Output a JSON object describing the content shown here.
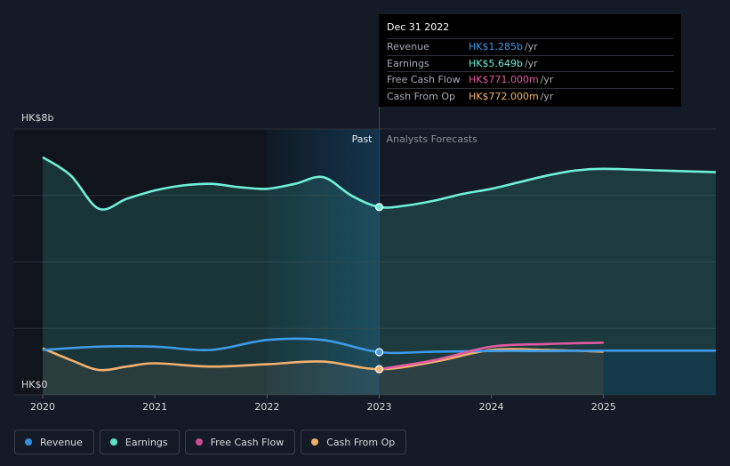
{
  "tooltip": {
    "date": "Dec 31 2022",
    "rows": [
      {
        "label": "Revenue",
        "value": "HK$1.285b",
        "unit": "/yr",
        "color": "#3d9be9"
      },
      {
        "label": "Earnings",
        "value": "HK$5.649b",
        "unit": "/yr",
        "color": "#6ff0d6"
      },
      {
        "label": "Free Cash Flow",
        "value": "HK$771.000m",
        "unit": "/yr",
        "color": "#e15aa0"
      },
      {
        "label": "Cash From Op",
        "value": "HK$772.000m",
        "unit": "/yr",
        "color": "#f2b16e"
      }
    ]
  },
  "legend": [
    {
      "label": "Revenue",
      "color": "#2f8fe0"
    },
    {
      "label": "Earnings",
      "color": "#5fe3cb"
    },
    {
      "label": "Free Cash Flow",
      "color": "#c84f8f"
    },
    {
      "label": "Cash From Op",
      "color": "#f0ad66"
    }
  ],
  "chart_data": {
    "type": "line",
    "y_top_label": "HK$8b",
    "y_bottom_label": "HK$0",
    "ylim": [
      0,
      8
    ],
    "xlim": [
      2020,
      2026
    ],
    "x_ticks": [
      "2020",
      "2021",
      "2022",
      "2023",
      "2024",
      "2025"
    ],
    "x_tick_values": [
      2020,
      2021,
      2022,
      2023,
      2024,
      2025
    ],
    "past_label": "Past",
    "forecast_label": "Analysts Forecasts",
    "divider_x": 2023,
    "highlight_start_x": 2022,
    "series": [
      {
        "name": "Earnings",
        "color": "#6ff0d6",
        "x": [
          2020.0,
          2020.25,
          2020.5,
          2020.75,
          2021.0,
          2021.25,
          2021.5,
          2021.75,
          2022.0,
          2022.25,
          2022.5,
          2022.75,
          2023.0,
          2023.25,
          2023.5,
          2023.75,
          2024.0,
          2024.25,
          2024.5,
          2024.75,
          2025.0,
          2025.5,
          2026.0
        ],
        "values": [
          7.15,
          6.6,
          5.6,
          5.9,
          6.15,
          6.3,
          6.35,
          6.25,
          6.2,
          6.35,
          6.55,
          6.0,
          5.65,
          5.7,
          5.85,
          6.05,
          6.2,
          6.4,
          6.6,
          6.75,
          6.8,
          6.75,
          6.7
        ]
      },
      {
        "name": "Revenue",
        "color": "#3d9be9",
        "x": [
          2020.0,
          2020.5,
          2021.0,
          2021.5,
          2022.0,
          2022.5,
          2023.0,
          2023.5,
          2024.0,
          2024.5,
          2025.0,
          2025.5,
          2026.0
        ],
        "values": [
          1.35,
          1.45,
          1.45,
          1.35,
          1.65,
          1.65,
          1.285,
          1.3,
          1.32,
          1.32,
          1.33,
          1.33,
          1.33
        ]
      },
      {
        "name": "Free Cash Flow",
        "color": "#e15aa0",
        "x": [
          2023.0,
          2023.5,
          2024.0,
          2024.5,
          2025.0
        ],
        "values": [
          0.771,
          1.05,
          1.45,
          1.53,
          1.57
        ]
      },
      {
        "name": "Cash From Op",
        "color": "#f2b16e",
        "x": [
          2020.0,
          2020.25,
          2020.5,
          2020.75,
          2021.0,
          2021.5,
          2022.0,
          2022.5,
          2023.0,
          2023.5,
          2024.0,
          2024.5,
          2025.0
        ],
        "values": [
          1.4,
          1.05,
          0.75,
          0.85,
          0.95,
          0.85,
          0.92,
          1.0,
          0.772,
          1.0,
          1.35,
          1.35,
          1.3
        ]
      }
    ],
    "highlight_points": [
      {
        "series": "Earnings",
        "x": 2023,
        "value": 5.65
      },
      {
        "series": "Revenue",
        "x": 2023,
        "value": 1.285
      },
      {
        "series": "Cash From Op",
        "x": 2023,
        "value": 0.772
      }
    ]
  }
}
